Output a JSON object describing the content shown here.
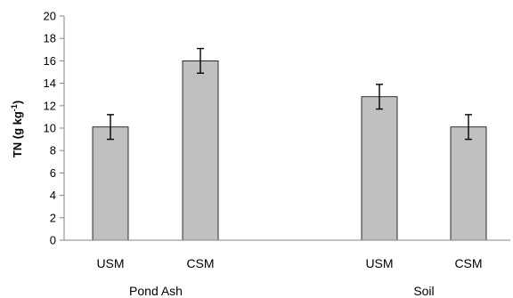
{
  "chart_data": {
    "type": "bar",
    "ylabel_main": "TN (g kg",
    "ylabel_sup": "-1",
    "ylabel_close": ")",
    "ylim": [
      0,
      20
    ],
    "yticks": [
      "0",
      "2",
      "4",
      "6",
      "8",
      "10",
      "12",
      "14",
      "16",
      "18",
      "20"
    ],
    "groups": [
      {
        "name": "Pond Ash",
        "bars": [
          {
            "category": "USM",
            "value": 10.1,
            "error": 1.1
          },
          {
            "category": "CSM",
            "value": 16.0,
            "error": 1.1
          }
        ]
      },
      {
        "name": "Soil",
        "bars": [
          {
            "category": "USM",
            "value": 12.8,
            "error": 1.1
          },
          {
            "category": "CSM",
            "value": 10.1,
            "error": 1.1
          }
        ]
      }
    ],
    "grid": false,
    "colors": {
      "bar_fill": "#c0c0c0",
      "bar_stroke": "#000000",
      "axis": "#868686"
    }
  }
}
